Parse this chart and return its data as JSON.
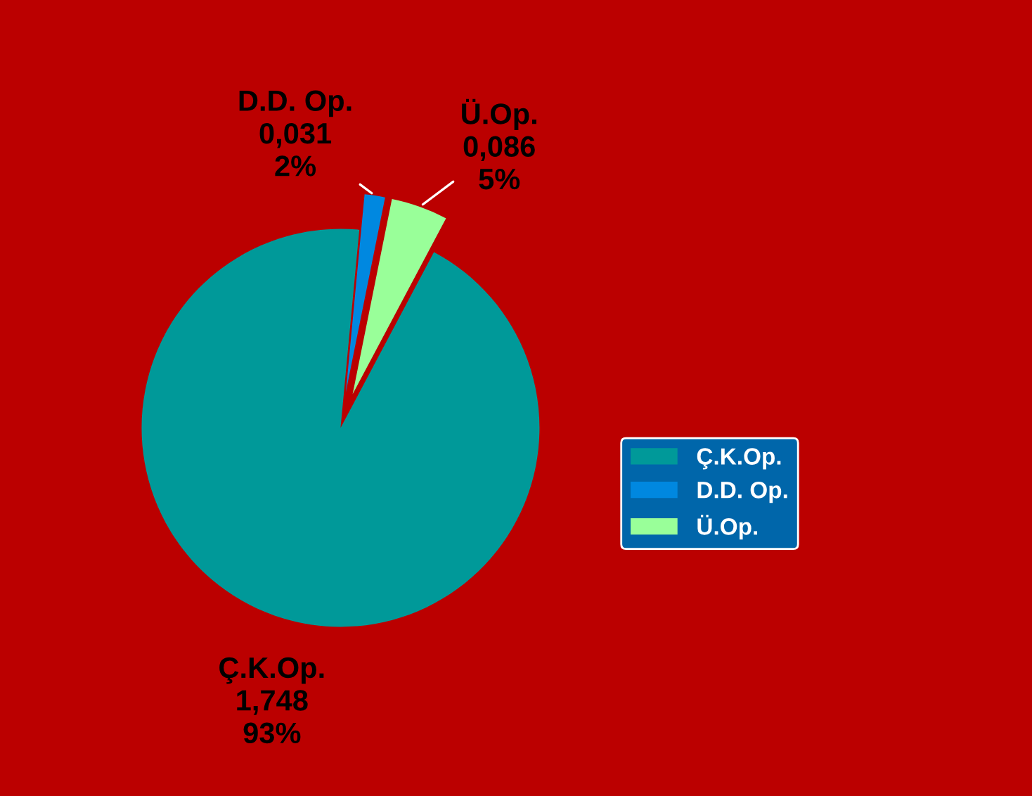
{
  "chart_data": {
    "type": "pie",
    "categories": [
      "Ç.K.Op.",
      "D.D. Op.",
      "Ü.Op."
    ],
    "values": [
      1.748,
      0.031,
      0.086
    ],
    "colors": [
      "#009999",
      "#0088e0",
      "#99ff99"
    ],
    "value_labels": [
      "1,748\n93%",
      "0,031\n2%",
      "0,086\n5%"
    ],
    "legend": "right"
  }
}
